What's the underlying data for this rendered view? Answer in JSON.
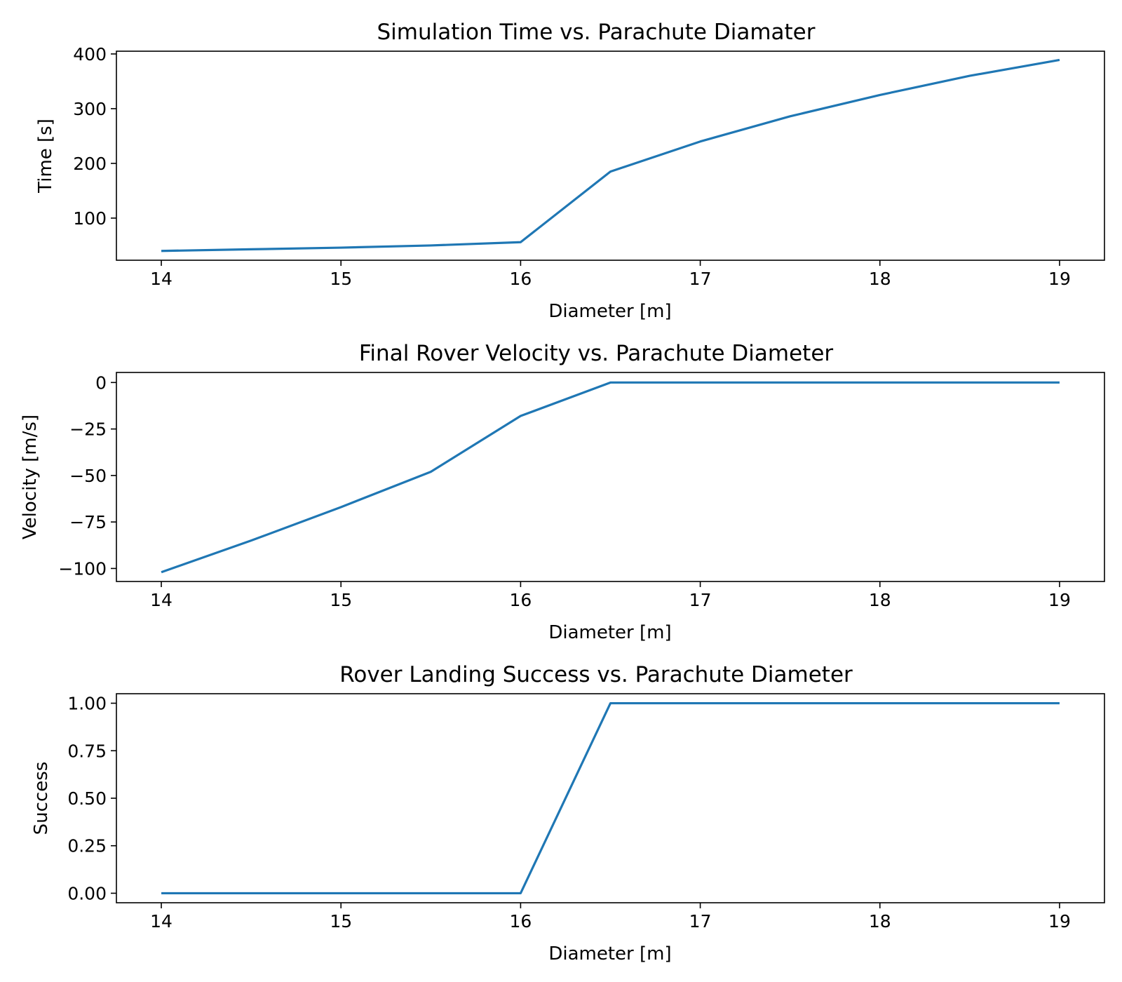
{
  "chart_data": [
    {
      "type": "line",
      "title": "Simulation Time vs. Parachute Diamater",
      "xlabel": "Diameter [m]",
      "ylabel": "Time [s]",
      "xlim": [
        13.75,
        19.25
      ],
      "ylim": [
        23,
        405
      ],
      "xticks": [
        14,
        15,
        16,
        17,
        18,
        19
      ],
      "xtick_labels": [
        "14",
        "15",
        "16",
        "17",
        "18",
        "19"
      ],
      "yticks": [
        100,
        200,
        300,
        400
      ],
      "ytick_labels": [
        "100",
        "200",
        "300",
        "400"
      ],
      "grid": false,
      "color": "#1f77b4",
      "x": [
        14,
        14.5,
        15,
        15.5,
        16,
        16.5,
        17,
        17.5,
        18,
        18.5,
        19
      ],
      "y": [
        40,
        43,
        46,
        50,
        56,
        185,
        240,
        286,
        325,
        360,
        389
      ]
    },
    {
      "type": "line",
      "title": "Final Rover Velocity vs. Parachute Diameter",
      "xlabel": "Diameter [m]",
      "ylabel": "Velocity [m/s]",
      "xlim": [
        13.75,
        19.25
      ],
      "ylim": [
        -107,
        5.4
      ],
      "xticks": [
        14,
        15,
        16,
        17,
        18,
        19
      ],
      "xtick_labels": [
        "14",
        "15",
        "16",
        "17",
        "18",
        "19"
      ],
      "yticks": [
        0,
        -25,
        -50,
        -75,
        -100
      ],
      "ytick_labels": [
        "0",
        "−25",
        "−50",
        "−75",
        "−100"
      ],
      "grid": false,
      "color": "#1f77b4",
      "x": [
        14,
        14.5,
        15,
        15.5,
        16,
        16.5,
        17,
        17.5,
        18,
        18.5,
        19
      ],
      "y": [
        -102,
        -85,
        -67,
        -48,
        -18,
        0,
        0,
        0,
        0,
        0,
        0
      ]
    },
    {
      "type": "line",
      "title": "Rover Landing Success vs. Parachute Diameter",
      "xlabel": "Diameter [m]",
      "ylabel": "Success",
      "xlim": [
        13.75,
        19.25
      ],
      "ylim": [
        -0.05,
        1.05
      ],
      "xticks": [
        14,
        15,
        16,
        17,
        18,
        19
      ],
      "xtick_labels": [
        "14",
        "15",
        "16",
        "17",
        "18",
        "19"
      ],
      "yticks": [
        0,
        0.25,
        0.5,
        0.75,
        1
      ],
      "ytick_labels": [
        "0.00",
        "0.25",
        "0.50",
        "0.75",
        "1.00"
      ],
      "grid": false,
      "color": "#1f77b4",
      "x": [
        14,
        14.5,
        15,
        15.5,
        16,
        16.5,
        17,
        17.5,
        18,
        18.5,
        19
      ],
      "y": [
        0,
        0,
        0,
        0,
        0,
        1,
        1,
        1,
        1,
        1,
        1
      ]
    }
  ]
}
